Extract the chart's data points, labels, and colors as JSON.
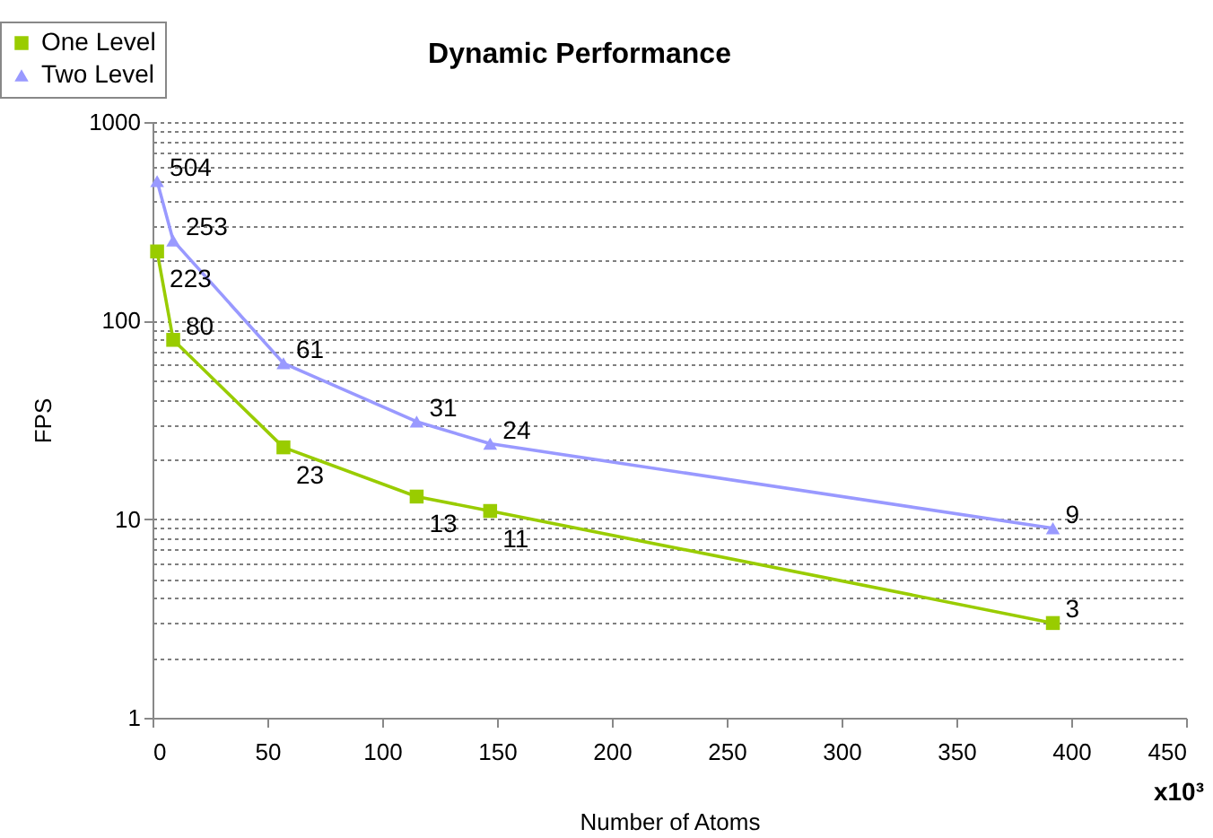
{
  "chart_data": {
    "type": "line",
    "title": "Dynamic Performance",
    "xlabel": "Number of Atoms",
    "ylabel": "FPS",
    "annotations": [
      "x10³"
    ],
    "xlim": [
      0,
      450
    ],
    "xticks": [
      0,
      50,
      100,
      150,
      200,
      250,
      300,
      350,
      400,
      450
    ],
    "ylim": [
      1,
      1000
    ],
    "yticks": [
      1,
      {
        "value": 2,
        "label": null
      },
      {
        "value": 3,
        "label": null
      },
      {
        "value": 4,
        "label": null
      },
      {
        "value": 5,
        "label": null
      },
      {
        "value": 6,
        "label": null
      },
      {
        "value": 7,
        "label": null
      },
      {
        "value": 8,
        "label": null
      },
      {
        "value": 9,
        "label": null
      },
      10,
      {
        "value": 20,
        "label": null
      },
      {
        "value": 30,
        "label": null
      },
      {
        "value": 40,
        "label": null
      },
      {
        "value": 50,
        "label": null
      },
      {
        "value": 60,
        "label": null
      },
      {
        "value": 70,
        "label": null
      },
      {
        "value": 80,
        "label": null
      },
      {
        "value": 90,
        "label": null
      },
      100,
      {
        "value": 200,
        "label": null
      },
      {
        "value": 300,
        "label": null
      },
      {
        "value": 400,
        "label": null
      },
      {
        "value": 500,
        "label": null
      },
      {
        "value": 600,
        "label": null
      },
      {
        "value": 700,
        "label": null
      },
      {
        "value": 800,
        "label": null
      },
      {
        "value": 900,
        "label": null
      },
      1000
    ],
    "log": "y",
    "grid": "y",
    "legend": "top left",
    "data_labels": true,
    "series": [
      {
        "name": "One Level",
        "color": "#99cc00",
        "marker": "square",
        "x": [
          2,
          9,
          57,
          115,
          147,
          392
        ],
        "values": [
          223,
          80,
          23,
          13,
          11,
          3
        ]
      },
      {
        "name": "Two Level",
        "color": "#9999ff",
        "marker": "triangle",
        "x": [
          2,
          9,
          57,
          115,
          147,
          392
        ],
        "values": [
          504,
          253,
          61,
          31,
          24,
          9
        ]
      }
    ]
  }
}
